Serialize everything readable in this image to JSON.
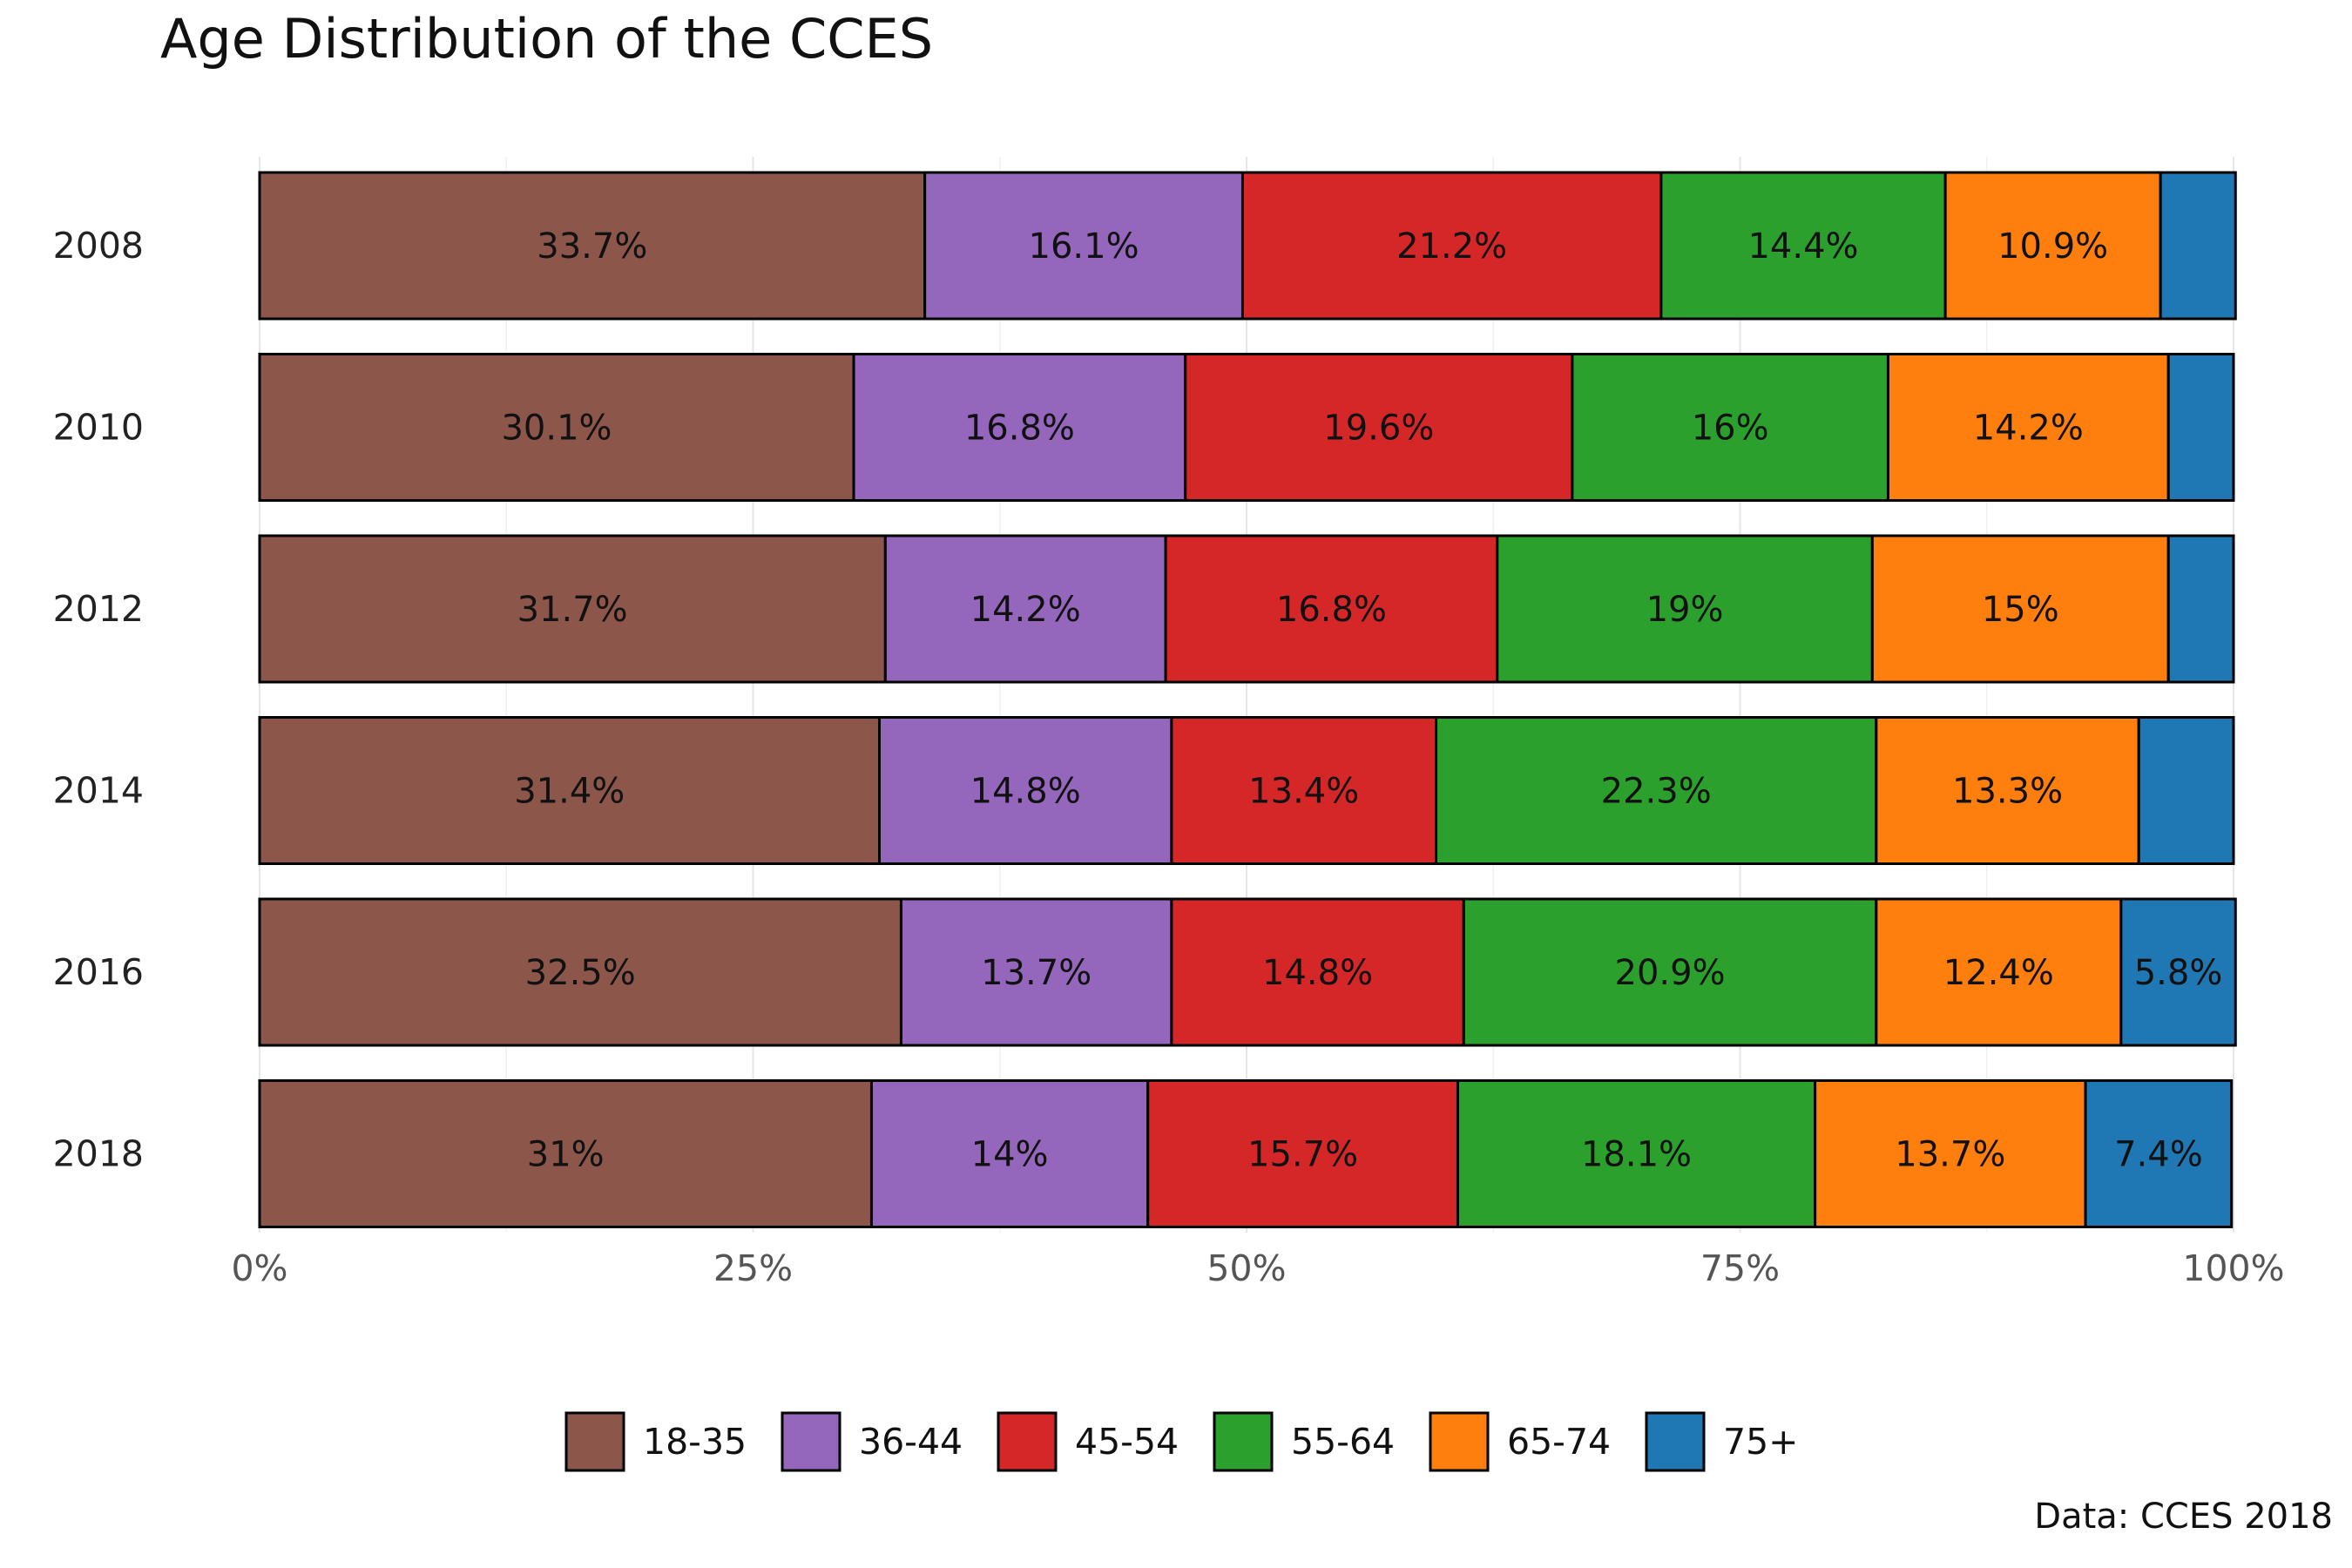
{
  "chart_data": {
    "type": "bar",
    "orientation": "horizontal",
    "stacked": true,
    "title": "Age Distribution of the CCES",
    "caption": "Data: CCES 2018",
    "xlabel": "",
    "ylabel": "",
    "xlim": [
      0,
      100
    ],
    "x_ticks": [
      "0%",
      "25%",
      "50%",
      "75%",
      "100%"
    ],
    "x_tick_values": [
      0,
      25,
      50,
      75,
      100
    ],
    "grid": true,
    "legend_position": "bottom",
    "categories": [
      "2008",
      "2010",
      "2012",
      "2014",
      "2016",
      "2018"
    ],
    "series": [
      {
        "name": "18-35",
        "color": "#8c564b",
        "values": [
          33.7,
          30.1,
          31.7,
          31.4,
          32.5,
          31.0
        ],
        "labels": [
          "33.7%",
          "30.1%",
          "31.7%",
          "31.4%",
          "32.5%",
          "31%"
        ]
      },
      {
        "name": "36-44",
        "color": "#9467bd",
        "values": [
          16.1,
          16.8,
          14.2,
          14.8,
          13.7,
          14.0
        ],
        "labels": [
          "16.1%",
          "16.8%",
          "14.2%",
          "14.8%",
          "13.7%",
          "14%"
        ]
      },
      {
        "name": "45-54",
        "color": "#d62728",
        "values": [
          21.2,
          19.6,
          16.8,
          13.4,
          14.8,
          15.7
        ],
        "labels": [
          "21.2%",
          "19.6%",
          "16.8%",
          "13.4%",
          "14.8%",
          "15.7%"
        ]
      },
      {
        "name": "55-64",
        "color": "#2ca02c",
        "values": [
          14.4,
          16.0,
          19.0,
          22.3,
          20.9,
          18.1
        ],
        "labels": [
          "14.4%",
          "16%",
          "19%",
          "22.3%",
          "20.9%",
          "18.1%"
        ]
      },
      {
        "name": "65-74",
        "color": "#ff7f0e",
        "values": [
          10.9,
          14.2,
          15.0,
          13.3,
          12.4,
          13.7
        ],
        "labels": [
          "10.9%",
          "14.2%",
          "15%",
          "13.3%",
          "12.4%",
          "13.7%"
        ]
      },
      {
        "name": "75+",
        "color": "#1f77b4",
        "values": [
          3.8,
          3.3,
          3.3,
          4.8,
          5.8,
          7.4
        ],
        "labels": [
          "",
          "",
          "",
          "",
          "5.8%",
          "7.4%"
        ]
      }
    ]
  }
}
